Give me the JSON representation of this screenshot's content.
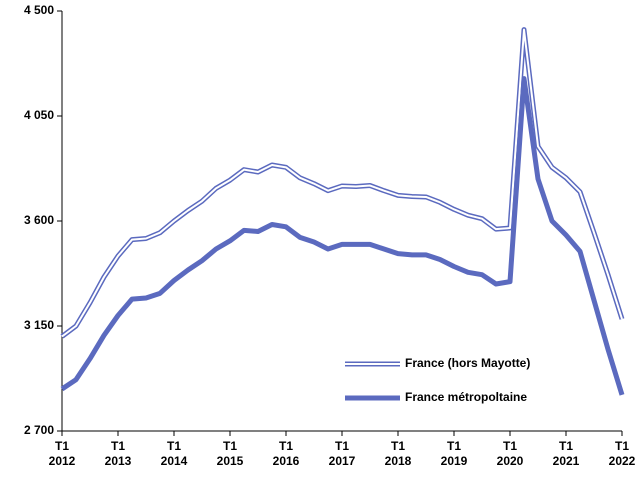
{
  "chart_data": {
    "type": "line",
    "categories": [
      "T1 2012",
      null,
      null,
      null,
      "T1 2013",
      null,
      null,
      null,
      "T1 2014",
      null,
      null,
      null,
      "T1 2015",
      null,
      null,
      null,
      "T1 2016",
      null,
      null,
      null,
      "T1 2017",
      null,
      null,
      null,
      "T1 2018",
      null,
      null,
      null,
      "T1 2019",
      null,
      null,
      null,
      "T1 2020",
      null,
      null,
      null,
      "T1 2021",
      null,
      null,
      null,
      "T1 2022"
    ],
    "series": [
      {
        "name": "France (hors Mayotte)",
        "color": "#5b6abf",
        "line_style": "double",
        "values": [
          3105,
          3150,
          3250,
          3360,
          3450,
          3520,
          3525,
          3550,
          3600,
          3645,
          3685,
          3740,
          3775,
          3820,
          3810,
          3840,
          3830,
          3785,
          3760,
          3730,
          3750,
          3748,
          3752,
          3730,
          3710,
          3705,
          3703,
          3680,
          3650,
          3625,
          3610,
          3565,
          3570,
          4420,
          3920,
          3830,
          3785,
          3725,
          3550,
          3370,
          3180
        ]
      },
      {
        "name": "France métropoltaine",
        "color": "#5b6abf",
        "line_style": "solid",
        "values": [
          2880,
          2920,
          3010,
          3110,
          3195,
          3265,
          3270,
          3290,
          3345,
          3390,
          3430,
          3480,
          3515,
          3560,
          3555,
          3585,
          3575,
          3530,
          3510,
          3480,
          3500,
          3500,
          3500,
          3480,
          3460,
          3455,
          3455,
          3435,
          3405,
          3380,
          3370,
          3330,
          3340,
          4210,
          3780,
          3600,
          3540,
          3470,
          3260,
          3050,
          2855
        ]
      }
    ],
    "ylim": [
      2700,
      4500
    ],
    "yticks": [
      {
        "value": 2700,
        "label": "2 700"
      },
      {
        "value": 3150,
        "label": "3 150"
      },
      {
        "value": 3600,
        "label": "3 600"
      },
      {
        "value": 4050,
        "label": "4 050"
      },
      {
        "value": 4500,
        "label": "4 500"
      }
    ],
    "grid": false,
    "legend": "lower right"
  }
}
